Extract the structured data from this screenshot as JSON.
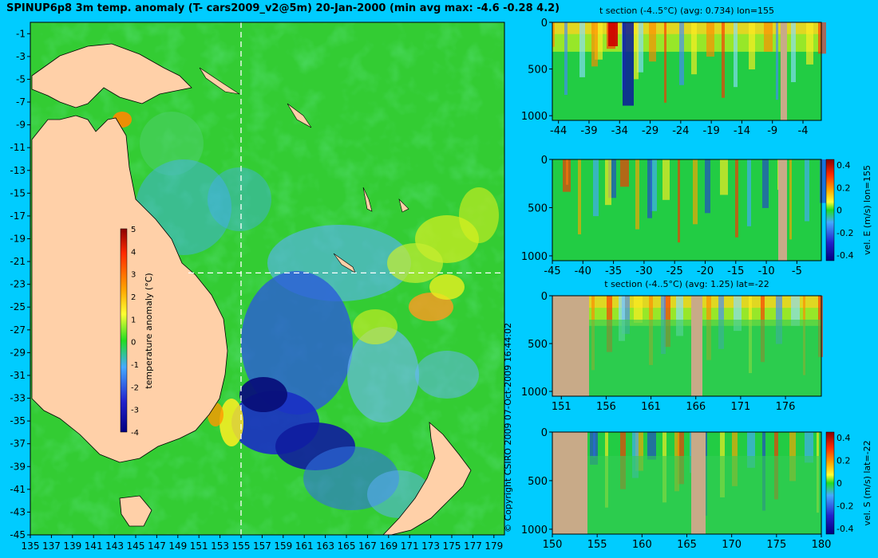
{
  "title": "SPINUP6p8 3m temp. anomaly (T- cars2009_v2@5m) 20-Jan-2000 (min avg max: -4.6 -0.28 4.2)",
  "copyright": "© Copyright CSIRO 2009  07-Oct-2009 16:44:02",
  "colors": {
    "background": "#00ccff",
    "land": "#ffd0a8",
    "section_land": "#c8aa88"
  },
  "chart_data": [
    {
      "type": "heatmap",
      "id": "map",
      "x_ticks": [
        "135",
        "137",
        "139",
        "141",
        "143",
        "145",
        "147",
        "149",
        "151",
        "153",
        "155",
        "157",
        "159",
        "161",
        "163",
        "165",
        "167",
        "169",
        "171",
        "173",
        "175",
        "177",
        "179"
      ],
      "y_ticks": [
        "-1",
        "-3",
        "-5",
        "-7",
        "-9",
        "-11",
        "-13",
        "-15",
        "-17",
        "-19",
        "-21",
        "-23",
        "-25",
        "-27",
        "-29",
        "-31",
        "-33",
        "-35",
        "-37",
        "-39",
        "-41",
        "-43",
        "-45"
      ],
      "xlim": [
        135,
        180
      ],
      "ylim": [
        -45,
        0
      ],
      "section_lon": 155,
      "section_lat": -22,
      "colorbar": {
        "label": "temperature anomaly (°C)",
        "ticks": [
          "5",
          "4",
          "3",
          "2",
          "1",
          "0",
          "-1",
          "-2",
          "-3",
          "-4"
        ],
        "range": [
          -4,
          5
        ]
      }
    },
    {
      "type": "heatmap",
      "id": "section1",
      "title": "t section (-4..5°C) (avg: 0.734) lon=155",
      "x_ticks": [
        "-44",
        "-39",
        "-34",
        "-29",
        "-24",
        "-19",
        "-14",
        "-9",
        "-4"
      ],
      "y_ticks": [
        "0",
        "500",
        "1000"
      ]
    },
    {
      "type": "heatmap",
      "id": "section2",
      "x_ticks": [
        "-45",
        "-40",
        "-35",
        "-30",
        "-25",
        "-20",
        "-15",
        "-10",
        "-5"
      ],
      "y_ticks": [
        "0",
        "500",
        "1000"
      ],
      "colorbar": {
        "label": "vel. E (m/s) lon=155",
        "ticks": [
          "0.4",
          "0.2",
          "0",
          "-0.2",
          "-0.4"
        ],
        "range": [
          -0.4,
          0.4
        ]
      }
    },
    {
      "type": "heatmap",
      "id": "section3",
      "title": "t section (-4..5°C) (avg: 1.25) lat=-22",
      "x_ticks": [
        "151",
        "156",
        "161",
        "166",
        "171",
        "176"
      ],
      "y_ticks": [
        "0",
        "500",
        "1000"
      ]
    },
    {
      "type": "heatmap",
      "id": "section4",
      "x_ticks": [
        "150",
        "155",
        "160",
        "165",
        "170",
        "175",
        "180"
      ],
      "y_ticks": [
        "0",
        "500",
        "1000"
      ],
      "colorbar": {
        "label": "vel. S (m/s) lat=-22",
        "ticks": [
          "0.4",
          "0.2",
          "0",
          "-0.2",
          "-0.4"
        ],
        "range": [
          -0.4,
          0.4
        ]
      }
    }
  ]
}
